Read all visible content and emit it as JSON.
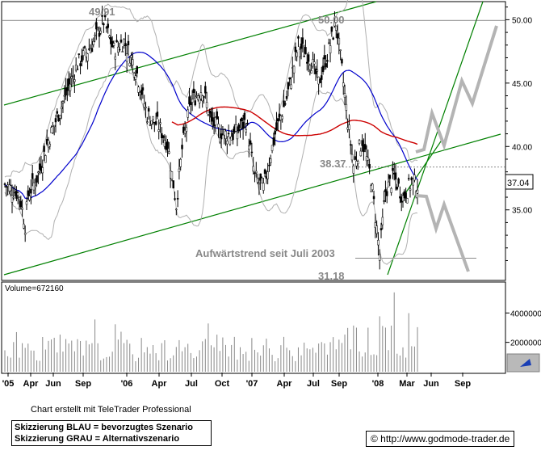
{
  "chart_data": {
    "type": "candlestick",
    "y_ticks": [
      "50.00",
      "45.00",
      "40.00",
      "35.00"
    ],
    "y_range": [
      29.5,
      51.3
    ],
    "x_ticks": [
      "'05",
      "Apr",
      "Jun",
      "Sep",
      "'06",
      "Apr",
      "Jul",
      "Oct",
      "'07",
      "Apr",
      "Jul",
      "Sep",
      "'08",
      "Mar",
      "Jun",
      "Sep"
    ],
    "price_labels": {
      "high_2006": "49.91",
      "high_2007": "50.00",
      "support": "38.37",
      "low_2008": "31.18",
      "last": "37.04"
    },
    "annotation": "Aufwärtstrend seit Juli 2003",
    "volume": {
      "label": "Volume=672160",
      "y_ticks": [
        "4000000",
        "2000000"
      ],
      "max": 5500000
    },
    "series": [
      {
        "name": "price",
        "color": "#000000"
      },
      {
        "name": "moving-average-blue",
        "color": "#0000cc"
      },
      {
        "name": "moving-average-red",
        "color": "#cc0000"
      },
      {
        "name": "bollinger-bands",
        "color": "#b0b0b0"
      },
      {
        "name": "trend-channel",
        "color": "#008000"
      },
      {
        "name": "scenario-blue",
        "color": "#008000"
      },
      {
        "name": "scenario-gray",
        "color": "#b4b4b4"
      }
    ],
    "grid": false
  },
  "footer": {
    "created_with": "Chart erstellt mit TeleTrader Professional",
    "legend_blue": "Skizzierung BLAU = bevorzugtes Szenario",
    "legend_gray": "Skizzierung GRAU = Alternativszenario",
    "source": "© http://www.godmode-trader.de"
  }
}
